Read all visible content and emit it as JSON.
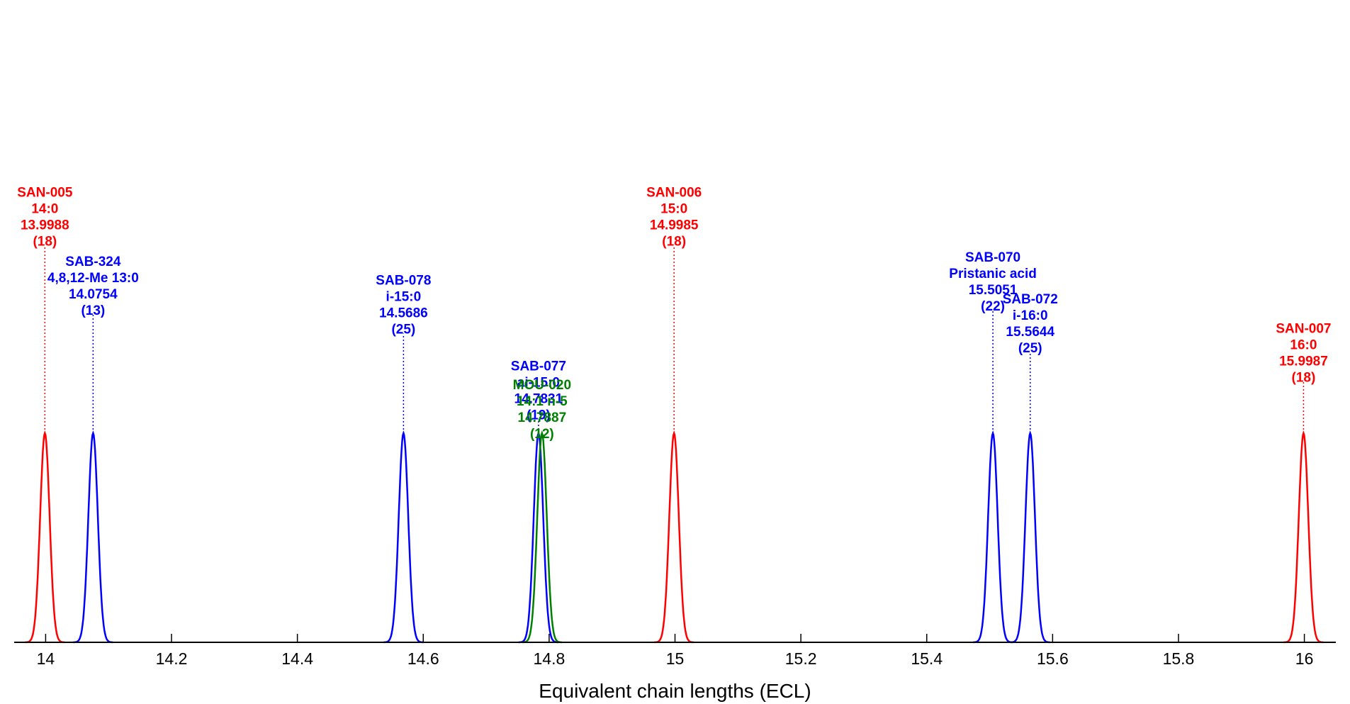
{
  "chart_data": {
    "type": "line",
    "title": "",
    "xlabel": "Equivalent chain lengths (ECL)",
    "ylabel": "",
    "xlim": [
      13.95,
      16.05
    ],
    "ylim": [
      0,
      1
    ],
    "grid": false,
    "legend": "none",
    "x_ticks": [
      14,
      14.2,
      14.4,
      14.6,
      14.8,
      15,
      15.2,
      15.4,
      15.6,
      15.8,
      16
    ],
    "x_tick_labels": [
      "14",
      "14.2",
      "14.4",
      "14.6",
      "14.8",
      "15",
      "15.2",
      "15.4",
      "15.6",
      "15.8",
      "16"
    ],
    "colors": {
      "red": "#ff0000",
      "blue": "#0000ff",
      "green": "#008000",
      "axis": "#000000"
    },
    "peaks": [
      {
        "code": "SAN-005",
        "name": "14:0",
        "ecl": 13.9988,
        "ecl_label": "13.9988",
        "count": "(18)",
        "color": "red",
        "label_height": 1.93
      },
      {
        "code": "SAB-324",
        "name": "4,8,12-Me 13:0",
        "ecl": 14.0754,
        "ecl_label": "14.0754",
        "count": "(13)",
        "color": "blue",
        "label_height": 1.6
      },
      {
        "code": "SAB-078",
        "name": "i-15:0",
        "ecl": 14.5686,
        "ecl_label": "14.5686",
        "count": "(25)",
        "color": "blue",
        "label_height": 1.51
      },
      {
        "code": "SAB-077",
        "name": "ai-15:0",
        "ecl": 14.7831,
        "ecl_label": "14.7831",
        "count": "(19)",
        "color": "blue",
        "label_height": 1.1
      },
      {
        "code": "MOU-020",
        "name": "14:1 n-5",
        "ecl": 14.7887,
        "ecl_label": "14.7887",
        "count": "(12)",
        "color": "green",
        "label_height": 1.01
      },
      {
        "code": "SAN-006",
        "name": "15:0",
        "ecl": 14.9985,
        "ecl_label": "14.9985",
        "count": "(18)",
        "color": "red",
        "label_height": 1.93
      },
      {
        "code": "SAB-070",
        "name": "Pristanic acid",
        "ecl": 15.5051,
        "ecl_label": "15.5051",
        "count": "(22)",
        "color": "blue",
        "label_height": 1.62
      },
      {
        "code": "SAB-072",
        "name": "i-16:0",
        "ecl": 15.5644,
        "ecl_label": "15.5644",
        "count": "(25)",
        "color": "blue",
        "label_height": 1.42
      },
      {
        "code": "SAN-007",
        "name": "16:0",
        "ecl": 15.9987,
        "ecl_label": "15.9987",
        "count": "(18)",
        "color": "red",
        "label_height": 1.28
      }
    ]
  }
}
